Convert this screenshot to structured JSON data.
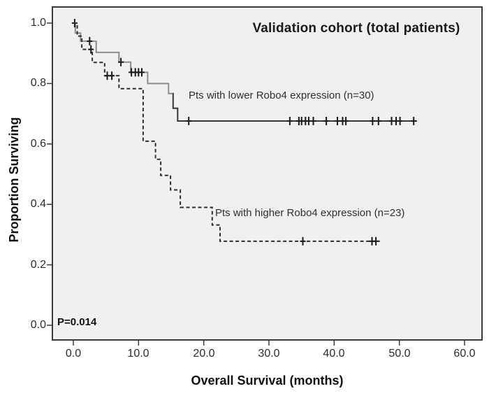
{
  "chart_data": {
    "type": "line",
    "chart_kind": "kaplan-meier-step",
    "title": "Validation cohort (total patients)",
    "xlabel": "Overall Survival (months)",
    "ylabel": "Proportion Surviving",
    "annotation": "P=0.014",
    "xlim": [
      0,
      60
    ],
    "ylim": [
      0,
      1.0
    ],
    "x_ticks": [
      "0.0",
      "10.0",
      "20.0",
      "30.0",
      "40.0",
      "50.0",
      "60.0"
    ],
    "y_ticks": [
      "1.0",
      "0.8",
      "0.6",
      "0.4",
      "0.2",
      "0.0"
    ],
    "grid": false,
    "legend_position": "inline-labels",
    "plot_bg": "#f0f0ee",
    "frame_color": "#3a3a3a",
    "series": [
      {
        "name": "lower-robo4",
        "label": "Pts with lower Robo4 expression (n=30)",
        "n": 30,
        "style": "solid",
        "color": "#8c8c8c",
        "late_color": "#383838",
        "color_change_x": 15.2,
        "censor_color": "#1a1a1a",
        "steps": [
          [
            0,
            1.0
          ],
          [
            0.3,
            0.967
          ],
          [
            1.1,
            0.94
          ],
          [
            3.5,
            0.903
          ],
          [
            7.0,
            0.871
          ],
          [
            8.8,
            0.837
          ],
          [
            11.4,
            0.8
          ],
          [
            14.6,
            0.767
          ],
          [
            15.3,
            0.718
          ],
          [
            16.0,
            0.676
          ]
        ],
        "end_x": 52.7,
        "censors": [
          0.2,
          2.5,
          7.3,
          8.9,
          9.5,
          10.0,
          10.5,
          17.7,
          33.2,
          34.6,
          35.0,
          35.6,
          36.1,
          36.8,
          38.8,
          40.5,
          41.3,
          41.8,
          45.9,
          46.8,
          48.8,
          49.5,
          50.1,
          52.2
        ]
      },
      {
        "name": "higher-robo4",
        "label": "Pts with higher Robo4 expression (n=23)",
        "n": 23,
        "style": "dashed",
        "color": "#2e2e2e",
        "censor_color": "#1a1a1a",
        "steps": [
          [
            0,
            1.0
          ],
          [
            0.6,
            0.957
          ],
          [
            1.3,
            0.913
          ],
          [
            2.9,
            0.87
          ],
          [
            4.8,
            0.826
          ],
          [
            7.0,
            0.783
          ],
          [
            10.7,
            0.609
          ],
          [
            12.6,
            0.549
          ],
          [
            13.4,
            0.496
          ],
          [
            14.9,
            0.448
          ],
          [
            16.4,
            0.39
          ],
          [
            21.3,
            0.332
          ],
          [
            22.5,
            0.278
          ]
        ],
        "end_x": 47.0,
        "censors": [
          2.7,
          5.2,
          5.9,
          35.2,
          45.8,
          46.4
        ]
      }
    ]
  }
}
